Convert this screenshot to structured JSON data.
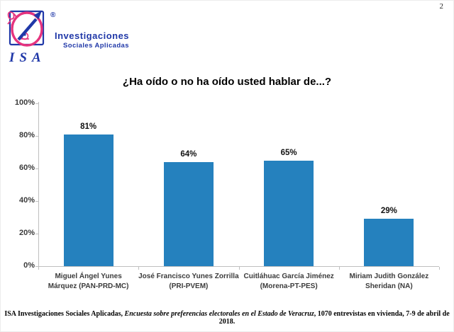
{
  "page": {
    "number": "2"
  },
  "logo": {
    "line1": "Investigaciones",
    "line2": "Sociales Aplicadas",
    "acronym": "ISA",
    "registered_mark": "®",
    "blue": "#2038A8",
    "pink": "#E5337E"
  },
  "chart_data": {
    "type": "bar",
    "title": "¿Ha oído o no ha oído usted hablar de...?",
    "categories": [
      "Miguel Ángel Yunes\nMárquez (PAN-PRD-MC)",
      "José Francisco Yunes Zorrilla\n(PRI-PVEM)",
      "Cuitláhuac García Jiménez\n(Morena-PT-PES)",
      "Miriam Judith González\nSheridan (NA)"
    ],
    "values": [
      81,
      64,
      65,
      29
    ],
    "data_labels": [
      "81%",
      "64%",
      "65%",
      "29%"
    ],
    "y_ticks": [
      "0%",
      "20%",
      "40%",
      "60%",
      "80%",
      "100%"
    ],
    "ylim": [
      0,
      100
    ],
    "xlabel": "",
    "ylabel": "",
    "grid": false,
    "legend": "none",
    "bar_color": "#2581BE",
    "axis_color": "#BFBFBF"
  },
  "footer": {
    "part1": "ISA Investigaciones Sociales Aplicadas, ",
    "part2_italic": "Encuesta sobre preferencias electorales en el Estado de Veracruz",
    "part3": ", 1070 entrevistas en vivienda, 7-9 de abril de 2018."
  }
}
